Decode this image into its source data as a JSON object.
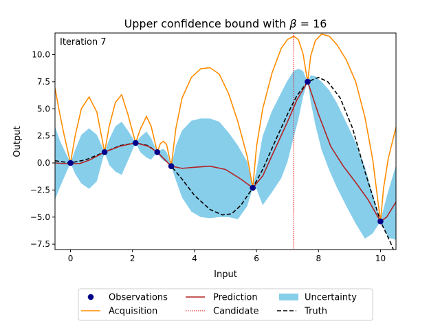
{
  "chart_data": {
    "type": "line",
    "title": "Upper confidence bound with β = 16",
    "title_prefix": "Upper confidence bound with ",
    "title_beta": "β",
    "title_suffix": " = 16",
    "annotation": "Iteration 7",
    "xlabel": "Input",
    "ylabel": "Output",
    "xlim": [
      -0.5,
      10.5
    ],
    "ylim": [
      -8.0,
      12.0
    ],
    "x_ticks": [
      0,
      2,
      4,
      6,
      8,
      10
    ],
    "y_ticks": [
      -7.5,
      -5.0,
      -2.5,
      0.0,
      2.5,
      5.0,
      7.5,
      10.0
    ],
    "y_tick_labels": [
      "−7.5",
      "−5.0",
      "−2.5",
      "0.0",
      "2.5",
      "5.0",
      "7.5",
      "10.0"
    ],
    "grid": false,
    "legend_placement": "below-center",
    "observations": {
      "name": "Observations",
      "color": "#00008b",
      "x": [
        0.0,
        1.1,
        2.1,
        2.8,
        3.25,
        5.88,
        7.65,
        10.0
      ],
      "y": [
        0.0,
        1.0,
        1.85,
        1.0,
        -0.3,
        -2.3,
        7.5,
        -5.4
      ]
    },
    "truth": {
      "name": "Truth",
      "color": "#000000",
      "x": [
        -0.5,
        0.0,
        0.5,
        1.1,
        1.6,
        2.1,
        2.5,
        2.8,
        3.25,
        3.6,
        4.0,
        4.5,
        4.9,
        5.2,
        5.5,
        5.88,
        6.2,
        6.6,
        7.0,
        7.3,
        7.65,
        8.0,
        8.3,
        8.7,
        9.1,
        9.5,
        10.0,
        10.3,
        10.5
      ],
      "y": [
        0.2,
        0.0,
        0.3,
        1.0,
        1.6,
        1.85,
        1.6,
        1.0,
        -0.3,
        -1.5,
        -3.0,
        -4.3,
        -4.8,
        -4.7,
        -3.9,
        -2.3,
        -0.6,
        2.0,
        4.5,
        6.2,
        7.5,
        7.9,
        7.5,
        6.0,
        3.2,
        -0.8,
        -5.4,
        -7.2,
        -8.6
      ]
    },
    "prediction": {
      "name": "Prediction",
      "color": "#b22222",
      "x": [
        -0.5,
        0.0,
        0.3,
        0.6,
        1.1,
        1.6,
        2.1,
        2.5,
        2.8,
        3.25,
        3.6,
        4.0,
        4.5,
        5.0,
        5.5,
        5.88,
        6.2,
        6.6,
        7.0,
        7.3,
        7.65,
        8.0,
        8.4,
        8.8,
        9.2,
        9.6,
        10.0,
        10.2,
        10.5
      ],
      "y": [
        0.0,
        -0.1,
        -0.05,
        0.25,
        1.0,
        1.55,
        1.85,
        1.55,
        1.0,
        -0.3,
        -0.5,
        -0.4,
        -0.3,
        -0.6,
        -1.5,
        -2.3,
        -1.2,
        1.3,
        3.8,
        5.8,
        7.5,
        4.5,
        1.5,
        -0.3,
        -1.8,
        -3.4,
        -5.4,
        -5.0,
        -3.6
      ]
    },
    "acquisition": {
      "name": "Acquisition",
      "color": "#ff8c00",
      "x": [
        -0.5,
        -0.35,
        -0.2,
        0.0,
        0.15,
        0.35,
        0.6,
        0.85,
        1.1,
        1.25,
        1.45,
        1.65,
        1.85,
        2.1,
        2.25,
        2.45,
        2.6,
        2.8,
        2.9,
        3.0,
        3.1,
        3.25,
        3.4,
        3.6,
        3.9,
        4.2,
        4.5,
        4.8,
        5.1,
        5.4,
        5.7,
        5.88,
        6.0,
        6.2,
        6.5,
        6.8,
        7.0,
        7.2,
        7.35,
        7.5,
        7.65,
        7.75,
        7.9,
        8.1,
        8.35,
        8.6,
        8.9,
        9.2,
        9.5,
        9.75,
        10.0,
        10.1,
        10.25,
        10.5
      ],
      "y": [
        6.9,
        4.6,
        2.5,
        0.0,
        2.5,
        5.0,
        6.1,
        4.7,
        1.0,
        3.4,
        5.6,
        6.3,
        4.5,
        1.85,
        3.1,
        4.3,
        3.4,
        1.0,
        1.8,
        2.0,
        1.7,
        -0.3,
        3.2,
        6.0,
        7.9,
        8.7,
        8.8,
        8.2,
        6.4,
        3.8,
        0.6,
        -2.3,
        1.5,
        5.0,
        8.3,
        10.6,
        11.4,
        11.7,
        11.4,
        10.1,
        7.5,
        9.9,
        11.3,
        11.9,
        11.7,
        10.9,
        9.5,
        7.5,
        4.2,
        0.3,
        -5.4,
        -2.3,
        0.4,
        3.3
      ]
    },
    "uncertainty": {
      "name": "Uncertainty",
      "color": "#87ceeb",
      "x": [
        -0.5,
        -0.35,
        -0.2,
        0.0,
        0.15,
        0.35,
        0.6,
        0.85,
        1.1,
        1.25,
        1.45,
        1.65,
        1.85,
        2.1,
        2.25,
        2.45,
        2.6,
        2.8,
        2.9,
        3.0,
        3.1,
        3.25,
        3.4,
        3.6,
        3.9,
        4.2,
        4.5,
        4.8,
        5.1,
        5.4,
        5.7,
        5.88,
        6.0,
        6.2,
        6.5,
        6.8,
        7.0,
        7.2,
        7.35,
        7.5,
        7.65,
        7.75,
        7.9,
        8.1,
        8.35,
        8.6,
        8.9,
        9.2,
        9.5,
        9.75,
        10.0,
        10.1,
        10.25,
        10.5
      ],
      "upper": [
        3.4,
        2.1,
        1.2,
        0.0,
        1.2,
        2.6,
        3.2,
        2.6,
        1.0,
        2.2,
        3.4,
        3.8,
        3.0,
        1.85,
        2.4,
        2.9,
        2.3,
        1.0,
        1.2,
        1.3,
        1.0,
        -0.3,
        1.6,
        3.0,
        3.9,
        4.1,
        4.1,
        3.8,
        2.8,
        1.6,
        0.1,
        -2.3,
        -0.7,
        2.5,
        4.8,
        6.5,
        7.6,
        8.5,
        8.7,
        8.5,
        7.5,
        8.1,
        8.0,
        7.5,
        6.7,
        5.5,
        3.7,
        1.9,
        -0.4,
        -2.9,
        -5.4,
        -4.2,
        -2.6,
        -0.2
      ],
      "lower": [
        -3.4,
        -2.3,
        -1.3,
        0.0,
        -1.0,
        -1.9,
        -2.4,
        -1.7,
        1.0,
        -0.2,
        -0.8,
        -1.1,
        0.2,
        1.85,
        1.0,
        0.5,
        0.3,
        1.0,
        0.5,
        0.2,
        0.1,
        -0.3,
        -1.6,
        -3.2,
        -4.5,
        -5.0,
        -5.1,
        -5.0,
        -5.0,
        -5.2,
        -4.0,
        -2.3,
        -2.4,
        -3.9,
        -2.7,
        -1.4,
        0.1,
        2.4,
        4.0,
        6.1,
        7.5,
        5.6,
        3.5,
        1.2,
        -0.7,
        -2.3,
        -4.0,
        -5.6,
        -7.0,
        -6.5,
        -5.4,
        -5.9,
        -6.9,
        -7.1
      ]
    },
    "candidate": {
      "name": "Candidate",
      "color": "#e00000",
      "x": 7.2
    },
    "legend": [
      {
        "key": "observations",
        "label": "Observations"
      },
      {
        "key": "acquisition",
        "label": "Acquisition"
      },
      {
        "key": "prediction",
        "label": "Prediction"
      },
      {
        "key": "candidate",
        "label": "Candidate"
      },
      {
        "key": "uncertainty",
        "label": "Uncertainty"
      },
      {
        "key": "truth",
        "label": "Truth"
      }
    ]
  }
}
